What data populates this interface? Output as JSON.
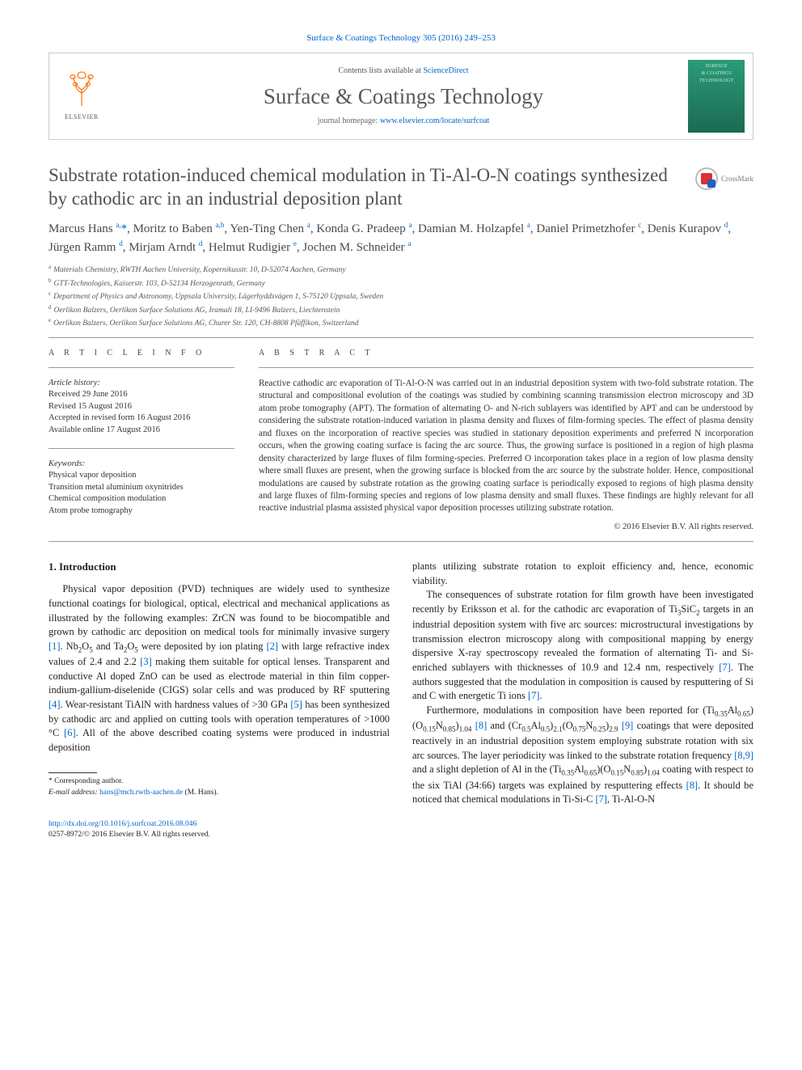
{
  "journal_ref_link": "Surface & Coatings Technology 305 (2016) 249–253",
  "header": {
    "contents_prefix": "Contents lists available at ",
    "contents_link": "ScienceDirect",
    "journal_name": "Surface & Coatings Technology",
    "homepage_prefix": "journal homepage: ",
    "homepage_url": "www.elsevier.com/locate/surfcoat",
    "elsevier_label": "ELSEVIER",
    "cover_lines": [
      "SURFACE",
      "& COATINGS",
      "TECHNOLOGY"
    ]
  },
  "article": {
    "title": "Substrate rotation-induced chemical modulation in Ti-Al-O-N coatings synthesized by cathodic arc in an industrial deposition plant",
    "crossmark": "CrossMark"
  },
  "authors_html": "Marcus Hans <sup>a,</sup><a href='#'>*</a>, Moritz to Baben <sup>a,b</sup>, Yen-Ting Chen <sup>a</sup>, Konda G. Pradeep <sup>a</sup>, Damian M. Holzapfel <sup>a</sup>, Daniel Primetzhofer <sup>c</sup>, Denis Kurapov <sup>d</sup>, Jürgen Ramm <sup>d</sup>, Mirjam Arndt <sup>d</sup>, Helmut Rudigier <sup>e</sup>, Jochen M. Schneider <sup>a</sup>",
  "affiliations": [
    {
      "key": "a",
      "text": "Materials Chemistry, RWTH Aachen University, Kopernikusstr. 10, D-52074 Aachen, Germany"
    },
    {
      "key": "b",
      "text": "GTT-Technologies, Kaiserstr. 103, D-52134 Herzogenrath, Germany"
    },
    {
      "key": "c",
      "text": "Department of Physics and Astronomy, Uppsala University, Lägerhyddsvägen 1, S-75120 Uppsala, Sweden"
    },
    {
      "key": "d",
      "text": "Oerlikon Balzers, Oerlikon Surface Solutions AG, Iramali 18, LI-9496 Balzers, Liechtenstein"
    },
    {
      "key": "e",
      "text": "Oerlikon Balzers, Oerlikon Surface Solutions AG, Churer Str. 120, CH-8808 Pfäffikon, Switzerland"
    }
  ],
  "meta": {
    "info_label": "A R T I C L E   I N F O",
    "abstract_label": "A B S T R A C T",
    "history_head": "Article history:",
    "history": [
      "Received 29 June 2016",
      "Revised 15 August 2016",
      "Accepted in revised form 16 August 2016",
      "Available online 17 August 2016"
    ],
    "keywords_head": "Keywords:",
    "keywords": [
      "Physical vapor deposition",
      "Transition metal aluminium oxynitrides",
      "Chemical composition modulation",
      "Atom probe tomography"
    ],
    "abstract": "Reactive cathodic arc evaporation of Ti-Al-O-N was carried out in an industrial deposition system with two-fold substrate rotation. The structural and compositional evolution of the coatings was studied by combining scanning transmission electron microscopy and 3D atom probe tomography (APT). The formation of alternating O- and N-rich sublayers was identified by APT and can be understood by considering the substrate rotation-induced variation in plasma density and fluxes of film-forming species. The effect of plasma density and fluxes on the incorporation of reactive species was studied in stationary deposition experiments and preferred N incorporation occurs, when the growing coating surface is facing the arc source. Thus, the growing surface is positioned in a region of high plasma density characterized by large fluxes of film forming-species. Preferred O incorporation takes place in a region of low plasma density where small fluxes are present, when the growing surface is blocked from the arc source by the substrate holder. Hence, compositional modulations are caused by substrate rotation as the growing coating surface is periodically exposed to regions of high plasma density and large fluxes of film-forming species and regions of low plasma density and small fluxes. These findings are highly relevant for all reactive industrial plasma assisted physical vapor deposition processes utilizing substrate rotation.",
    "copyright": "© 2016 Elsevier B.V. All rights reserved."
  },
  "body": {
    "section_heading": "1. Introduction",
    "col1_p1": "Physical vapor deposition (PVD) techniques are widely used to synthesize functional coatings for biological, optical, electrical and mechanical applications as illustrated by the following examples: ZrCN was found to be biocompatible and grown by cathodic arc deposition on medical tools for minimally invasive surgery <a href='#'>[1]</a>. Nb<sub>2</sub>O<sub>5</sub> and Ta<sub>2</sub>O<sub>5</sub> were deposited by ion plating <a href='#'>[2]</a> with large refractive index values of 2.4 and 2.2 <a href='#'>[3]</a> making them suitable for optical lenses. Transparent and conductive Al doped ZnO can be used as electrode material in thin film copper-indium-gallium-diselenide (CIGS) solar cells and was produced by RF sputtering <a href='#'>[4]</a>. Wear-resistant TiAlN with hardness values of >30 GPa <a href='#'>[5]</a> has been synthesized by cathodic arc and applied on cutting tools with operation temperatures of >1000 °C <a href='#'>[6]</a>. All of the above described coating systems were produced in industrial deposition",
    "col2_p1": "plants utilizing substrate rotation to exploit efficiency and, hence, economic viability.",
    "col2_p2": "The consequences of substrate rotation for film growth have been investigated recently by Eriksson et al. for the cathodic arc evaporation of Ti<sub>3</sub>SiC<sub>2</sub> targets in an industrial deposition system with five arc sources: microstructural investigations by transmission electron microscopy along with compositional mapping by energy dispersive X-ray spectroscopy revealed the formation of alternating Ti- and Si-enriched sublayers with thicknesses of 10.9 and 12.4 nm, respectively <a href='#'>[7]</a>. The authors suggested that the modulation in composition is caused by resputtering of Si and C with energetic Ti ions <a href='#'>[7]</a>.",
    "col2_p3": "Furthermore, modulations in composition have been reported for (Ti<sub>0.35</sub>Al<sub>0.65</sub>)(O<sub>0.15</sub>N<sub>0.85</sub>)<sub>1.04</sub> <a href='#'>[8]</a> and (Cr<sub>0.5</sub>Al<sub>0.5</sub>)<sub>2.1</sub>(O<sub>0.75</sub>N<sub>0.25</sub>)<sub>2.9</sub> <a href='#'>[9]</a> coatings that were deposited reactively in an industrial deposition system employing substrate rotation with six arc sources. The layer periodicity was linked to the substrate rotation frequency <a href='#'>[8,9]</a> and a slight depletion of Al in the (Ti<sub>0.35</sub>Al<sub>0.65</sub>)(O<sub>0.15</sub>N<sub>0.85</sub>)<sub>1.04</sub> coating with respect to the six TiAl (34:66) targets was explained by resputtering effects <a href='#'>[8]</a>. It should be noticed that chemical modulations in Ti-Si-C <a href='#'>[7]</a>, Ti-Al-O-N"
  },
  "footnote": {
    "corresponding": "* Corresponding author.",
    "email_label": "E-mail address: ",
    "email": "hans@mch.rwth-aachen.de",
    "email_suffix": " (M. Hans)."
  },
  "doi": {
    "url": "http://dx.doi.org/10.1016/j.surfcoat.2016.08.046",
    "line2": "0257-8972/© 2016 Elsevier B.V. All rights reserved."
  }
}
